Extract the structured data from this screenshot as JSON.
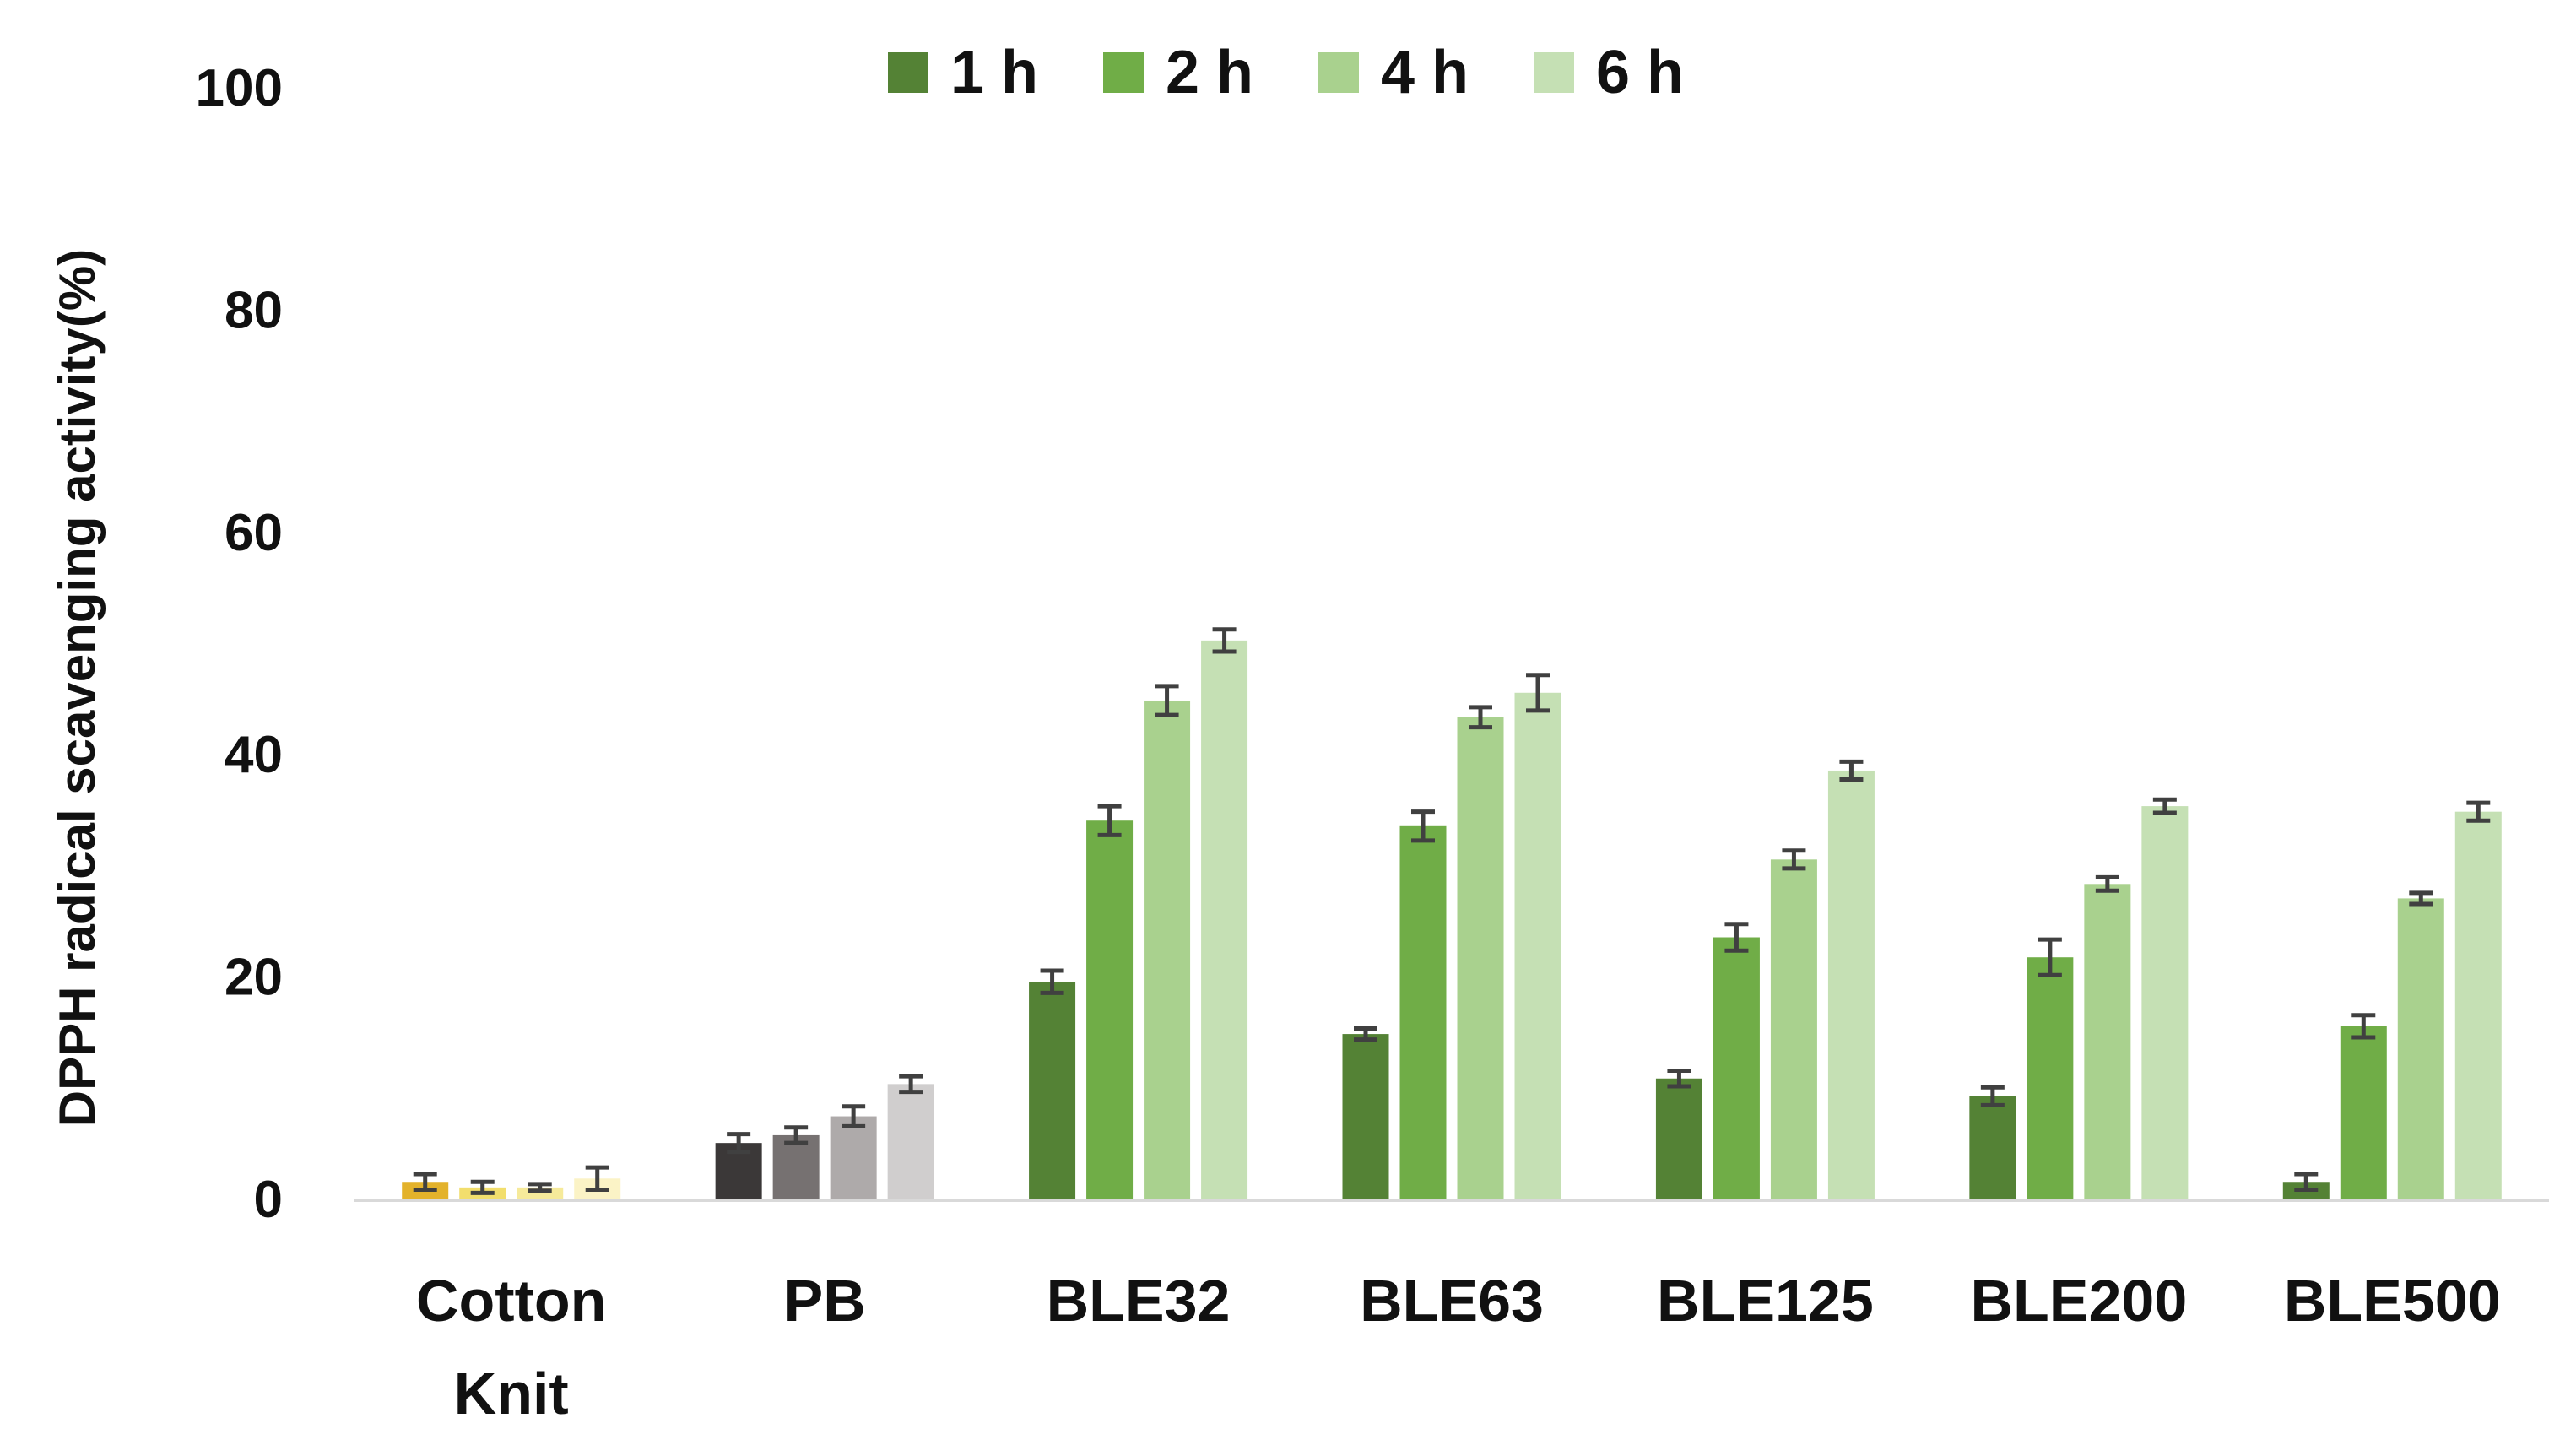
{
  "chart_data": {
    "type": "bar",
    "title": "",
    "xlabel": "",
    "ylabel": "DPPH radical scavenging activity(%)",
    "ylim": [
      0,
      100
    ],
    "yticks": [
      0,
      20,
      40,
      60,
      80,
      100
    ],
    "grid": false,
    "legend_position": "top",
    "categories": [
      {
        "lines": [
          "Cotton",
          "Knit"
        ]
      },
      {
        "lines": [
          "PB"
        ]
      },
      {
        "lines": [
          "BLE32"
        ]
      },
      {
        "lines": [
          "BLE63"
        ]
      },
      {
        "lines": [
          "BLE125"
        ]
      },
      {
        "lines": [
          "BLE200"
        ]
      },
      {
        "lines": [
          "BLE500"
        ]
      }
    ],
    "series": [
      {
        "name": "1 h",
        "color": "#548235",
        "values": [
          1.5,
          5.0,
          19.5,
          14.8,
          10.8,
          9.2,
          1.5
        ],
        "errors": [
          0.7,
          0.8,
          1.0,
          0.5,
          0.7,
          0.8,
          0.7
        ]
      },
      {
        "name": "2 h",
        "color": "#70AD47",
        "values": [
          1.0,
          5.7,
          34.0,
          33.5,
          23.5,
          21.7,
          15.5
        ],
        "errors": [
          0.5,
          0.7,
          1.3,
          1.3,
          1.2,
          1.6,
          1.0
        ]
      },
      {
        "name": "4 h",
        "color": "#A9D18E",
        "values": [
          1.0,
          7.4,
          44.8,
          43.3,
          30.5,
          28.3,
          27.0
        ],
        "errors": [
          0.3,
          0.9,
          1.3,
          0.9,
          0.8,
          0.6,
          0.5
        ]
      },
      {
        "name": "6 h",
        "color": "#C5E0B4",
        "values": [
          1.8,
          10.3,
          50.2,
          45.5,
          38.5,
          35.3,
          34.8
        ],
        "errors": [
          1.0,
          0.7,
          1.0,
          1.6,
          0.8,
          0.6,
          0.8
        ]
      }
    ],
    "category_color_overrides": [
      {
        "category_index": 0,
        "colors": [
          "#E3B22B",
          "#F2DE6D",
          "#F6EA9A",
          "#FBF3C6"
        ]
      },
      {
        "category_index": 1,
        "colors": [
          "#3B3838",
          "#767171",
          "#AEAAAA",
          "#D0CECE"
        ]
      }
    ],
    "error_bar_color": "#404040"
  }
}
